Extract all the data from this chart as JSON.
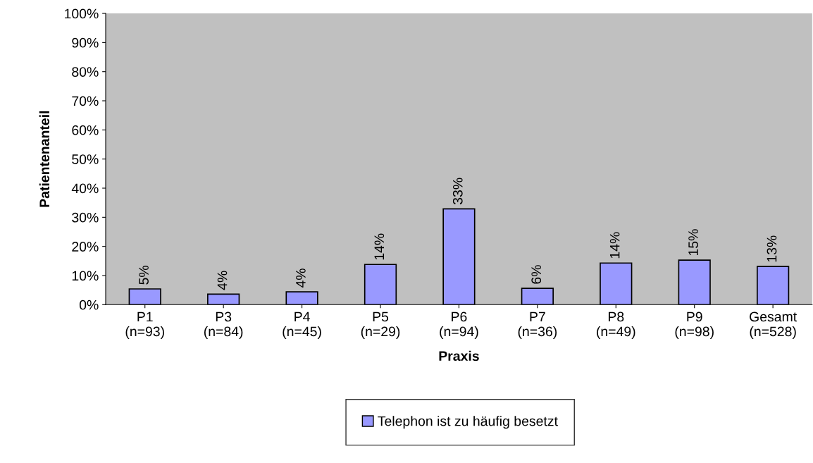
{
  "chart_data": {
    "type": "bar",
    "xlabel": "Praxis",
    "ylabel": "Patientenanteil",
    "categories": [
      "P1\n(n=93)",
      "P3\n(n=84)",
      "P4\n(n=45)",
      "P5\n(n=29)",
      "P6\n(n=94)",
      "P7\n(n=36)",
      "P8\n(n=49)",
      "P9\n(n=98)",
      "Gesamt\n(n=528)"
    ],
    "series": [
      {
        "name": "Telephon ist zu häufig besetzt",
        "color": "#9999ff",
        "values": [
          5.4,
          3.6,
          4.4,
          13.8,
          32.9,
          5.6,
          14.3,
          15.3,
          13.1
        ],
        "value_labels": [
          "5%",
          "4%",
          "4%",
          "14%",
          "33%",
          "6%",
          "14%",
          "15%",
          "13%"
        ]
      }
    ],
    "ylim": [
      0,
      100
    ],
    "yticks": [
      {
        "value": 0,
        "label": "0%"
      },
      {
        "value": 10,
        "label": "10%"
      },
      {
        "value": 20,
        "label": "20%"
      },
      {
        "value": 30,
        "label": "30%"
      },
      {
        "value": 40,
        "label": "40%"
      },
      {
        "value": 50,
        "label": "50%"
      },
      {
        "value": 60,
        "label": "60%"
      },
      {
        "value": 70,
        "label": "70%"
      },
      {
        "value": 80,
        "label": "80%"
      },
      {
        "value": 90,
        "label": "90%"
      },
      {
        "value": 100,
        "label": "100%"
      }
    ],
    "grid": false,
    "legend": "bottom"
  }
}
